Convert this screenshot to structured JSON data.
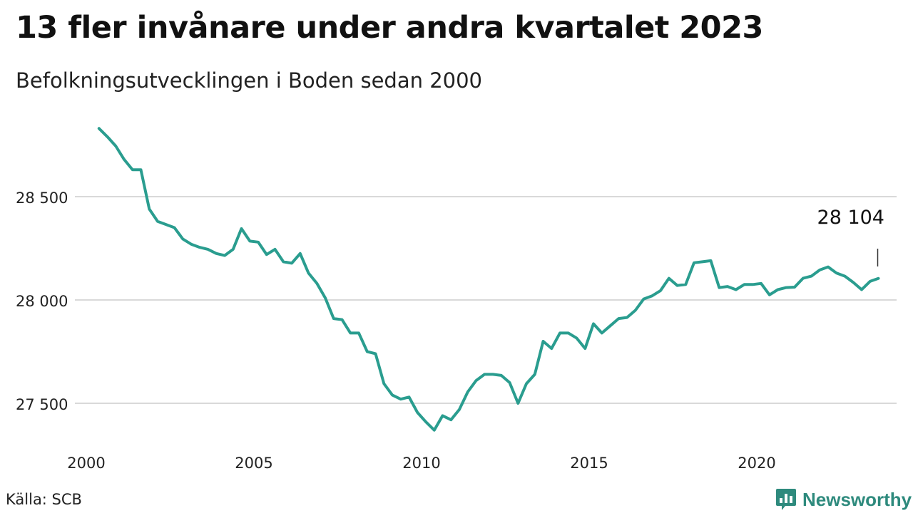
{
  "title": "13 fler invånare under andra kvartalet 2023",
  "subtitle": "Befolkningsutvecklingen i Boden sedan 2000",
  "source": "Källa: SCB",
  "brand": {
    "name": "Newsworthy",
    "icon": "bar-chart-speech-bubble-icon"
  },
  "colors": {
    "line": "#2a9d8f",
    "grid": "#d9d9d9",
    "brand": "#2e8a7d"
  },
  "chart_data": {
    "type": "line",
    "title": "13 fler invånare under andra kvartalet 2023",
    "subtitle": "Befolkningsutvecklingen i Boden sedan 2000",
    "xlabel": "",
    "ylabel": "",
    "xlim": [
      2000,
      2023.5
    ],
    "ylim": [
      27340,
      28860
    ],
    "x_ticks": [
      2000,
      2005,
      2010,
      2015,
      2020
    ],
    "y_ticks": [
      27500,
      28000,
      28500
    ],
    "y_tick_labels": [
      "27 500",
      "28 000",
      "28 500"
    ],
    "grid": "horizontal",
    "annotation": {
      "label": "28 104",
      "x": 2023.5,
      "y": 28104
    },
    "series": [
      {
        "x": [
          2000.25,
          2000.5,
          2000.75,
          2001,
          2001.25,
          2001.5,
          2001.75,
          2002,
          2002.25,
          2002.5,
          2002.75,
          2003,
          2003.25,
          2003.5,
          2003.75,
          2004,
          2004.25,
          2004.5,
          2004.75,
          2005,
          2005.25,
          2005.5,
          2005.75,
          2006,
          2006.25,
          2006.5,
          2006.75,
          2007,
          2007.25,
          2007.5,
          2007.75,
          2008,
          2008.25,
          2008.5,
          2008.75,
          2009,
          2009.25,
          2009.5,
          2009.75,
          2010,
          2010.25,
          2010.5,
          2010.75,
          2011,
          2011.25,
          2011.5,
          2011.75,
          2012,
          2012.25,
          2012.5,
          2012.75,
          2013,
          2013.25,
          2013.5,
          2013.75,
          2014,
          2014.25,
          2014.5,
          2014.75,
          2015,
          2015.25,
          2015.5,
          2015.75,
          2016,
          2016.25,
          2016.5,
          2016.75,
          2017,
          2017.25,
          2017.5,
          2017.75,
          2018,
          2018.25,
          2018.5,
          2018.75,
          2019,
          2019.25,
          2019.5,
          2019.75,
          2020,
          2020.25,
          2020.5,
          2020.75,
          2021,
          2021.25,
          2021.5,
          2021.75,
          2022,
          2022.25,
          2022.5,
          2022.75,
          2023,
          2023.25,
          2023.5
        ],
        "values": [
          28830,
          28790,
          28745,
          28680,
          28630,
          28630,
          28440,
          28380,
          28365,
          28350,
          28295,
          28270,
          28255,
          28245,
          28225,
          28215,
          28245,
          28345,
          28285,
          28280,
          28220,
          28245,
          28185,
          28178,
          28225,
          28130,
          28080,
          28010,
          27910,
          27905,
          27840,
          27840,
          27750,
          27740,
          27595,
          27540,
          27520,
          27530,
          27455,
          27410,
          27370,
          27440,
          27420,
          27470,
          27555,
          27610,
          27640,
          27640,
          27635,
          27600,
          27500,
          27595,
          27640,
          27800,
          27765,
          27840,
          27840,
          27815,
          27765,
          27885,
          27840,
          27875,
          27910,
          27915,
          27950,
          28005,
          28020,
          28045,
          28105,
          28070,
          28075,
          28180,
          28185,
          28190,
          28060,
          28065,
          28050,
          28075,
          28075,
          28080,
          28025,
          28050,
          28060,
          28062,
          28105,
          28115,
          28145,
          28160,
          28130,
          28115,
          28085,
          28050,
          28090,
          28104
        ]
      }
    ]
  }
}
